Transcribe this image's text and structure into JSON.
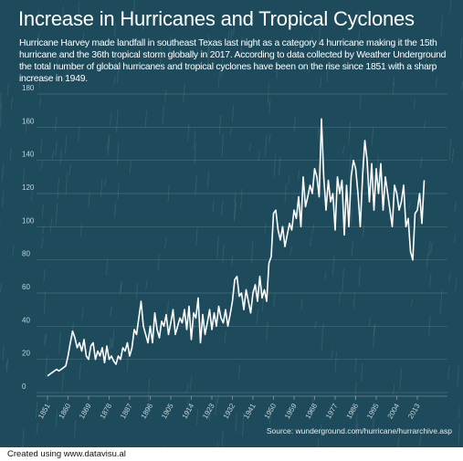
{
  "chart_data": {
    "type": "line",
    "title": "Increase in Hurricanes and Tropical Cyclones",
    "subtitle": "Hurricane Harvey made landfall in southeast Texas last night as a category 4 hurricane making it the 15th hurricane and the 36th tropical storm globally in 2017. According to data collected by Weather Underground the total number of global hurricanes and tropical cyclones have been on the rise since 1851 with a sharp increase in 1949.",
    "source": "Source: wunderground.com/hurricane/hurrarchive.asp",
    "color": "#ffffff",
    "grid": true,
    "x": [
      1851,
      1852,
      1853,
      1854,
      1855,
      1856,
      1857,
      1858,
      1859,
      1860,
      1861,
      1862,
      1863,
      1864,
      1865,
      1866,
      1867,
      1868,
      1869,
      1870,
      1871,
      1872,
      1873,
      1874,
      1875,
      1876,
      1877,
      1878,
      1879,
      1880,
      1881,
      1882,
      1883,
      1884,
      1885,
      1886,
      1887,
      1888,
      1889,
      1890,
      1891,
      1892,
      1893,
      1894,
      1895,
      1896,
      1897,
      1898,
      1899,
      1900,
      1901,
      1902,
      1903,
      1904,
      1905,
      1906,
      1907,
      1908,
      1909,
      1910,
      1911,
      1912,
      1913,
      1914,
      1915,
      1916,
      1917,
      1918,
      1919,
      1920,
      1921,
      1922,
      1923,
      1924,
      1925,
      1926,
      1927,
      1928,
      1929,
      1930,
      1931,
      1932,
      1933,
      1934,
      1935,
      1936,
      1937,
      1938,
      1939,
      1940,
      1941,
      1942,
      1943,
      1944,
      1945,
      1946,
      1947,
      1948,
      1949,
      1950,
      1951,
      1952,
      1953,
      1954,
      1955,
      1956,
      1957,
      1958,
      1959,
      1960,
      1961,
      1962,
      1963,
      1964,
      1965,
      1966,
      1967,
      1968,
      1969,
      1970,
      1971,
      1972,
      1973,
      1974,
      1975,
      1976,
      1977,
      1978,
      1979,
      1980,
      1981,
      1982,
      1983,
      1984,
      1985,
      1986,
      1987,
      1988,
      1989,
      1990,
      1991,
      1992,
      1993,
      1994,
      1995,
      1996,
      1997,
      1998,
      1999,
      2000,
      2001,
      2002,
      2003,
      2004,
      2005,
      2006,
      2007,
      2008,
      2009,
      2010,
      2011,
      2012,
      2013,
      2014,
      2015,
      2016
    ],
    "values": [
      10,
      11,
      12,
      13,
      14,
      13,
      14,
      15,
      16,
      22,
      30,
      37,
      33,
      27,
      30,
      25,
      32,
      22,
      20,
      28,
      30,
      20,
      25,
      22,
      27,
      18,
      28,
      20,
      22,
      19,
      17,
      22,
      20,
      27,
      25,
      30,
      22,
      27,
      38,
      35,
      45,
      55,
      40,
      35,
      30,
      40,
      30,
      48,
      38,
      33,
      43,
      40,
      47,
      35,
      42,
      50,
      35,
      40,
      45,
      42,
      50,
      38,
      52,
      32,
      48,
      45,
      57,
      30,
      47,
      35,
      42,
      50,
      38,
      48,
      40,
      52,
      45,
      42,
      50,
      40,
      47,
      55,
      68,
      70,
      58,
      60,
      50,
      62,
      55,
      48,
      60,
      65,
      55,
      70,
      57,
      62,
      55,
      78,
      82,
      108,
      110,
      98,
      92,
      100,
      88,
      95,
      102,
      98,
      110,
      105,
      118,
      100,
      130,
      112,
      118,
      125,
      120,
      135,
      130,
      118,
      165,
      130,
      110,
      128,
      115,
      120,
      98,
      130,
      120,
      128,
      95,
      125,
      100,
      130,
      140,
      135,
      120,
      100,
      130,
      152,
      140,
      115,
      138,
      110,
      135,
      120,
      138,
      110,
      130,
      120,
      110,
      100,
      125,
      120,
      110,
      115,
      125,
      100,
      105,
      85,
      80,
      108,
      110,
      120,
      102,
      128
    ],
    "xlim": [
      1846,
      2021
    ],
    "xticks": [
      1851,
      1860,
      1869,
      1878,
      1887,
      1896,
      1905,
      1914,
      1923,
      1932,
      1941,
      1950,
      1959,
      1968,
      1977,
      1986,
      1995,
      2004,
      2013
    ],
    "ylim": [
      0,
      180
    ],
    "yticks": [
      0,
      20,
      40,
      60,
      80,
      100,
      120,
      140,
      160,
      180
    ]
  },
  "footer": "Created using www.datavisu.al"
}
